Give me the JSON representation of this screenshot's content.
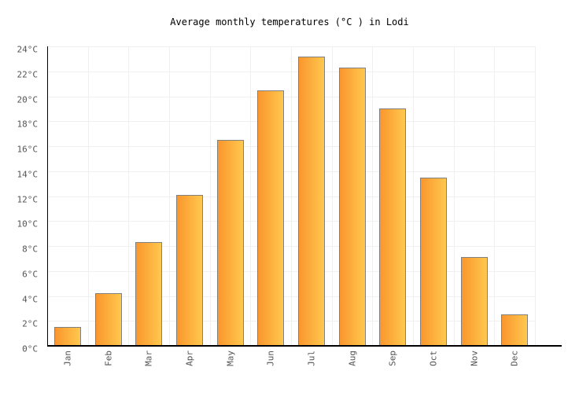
{
  "chart_data": {
    "type": "bar",
    "title": "Average monthly temperatures (°C ) in Lodi",
    "categories": [
      "Jan",
      "Feb",
      "Mar",
      "Apr",
      "May",
      "Jun",
      "Jul",
      "Aug",
      "Sep",
      "Oct",
      "Nov",
      "Dec"
    ],
    "values": [
      1.5,
      4.2,
      8.3,
      12.1,
      16.5,
      20.5,
      23.2,
      22.3,
      19.0,
      13.5,
      7.1,
      2.5
    ],
    "xlabel": "",
    "ylabel": "",
    "ylim": [
      0,
      24
    ],
    "ytick_step": 2,
    "ytick_suffix": "°C",
    "grid": true,
    "legend_position": "none",
    "colors": {
      "bar_gradient_left": "#fa962d",
      "bar_gradient_right": "#ffc84e",
      "bar_border": "#808080",
      "gridline": "#f0f0f0",
      "axis": "#000000",
      "tick_label": "#545454",
      "title": "#000000",
      "background": "#ffffff"
    }
  }
}
